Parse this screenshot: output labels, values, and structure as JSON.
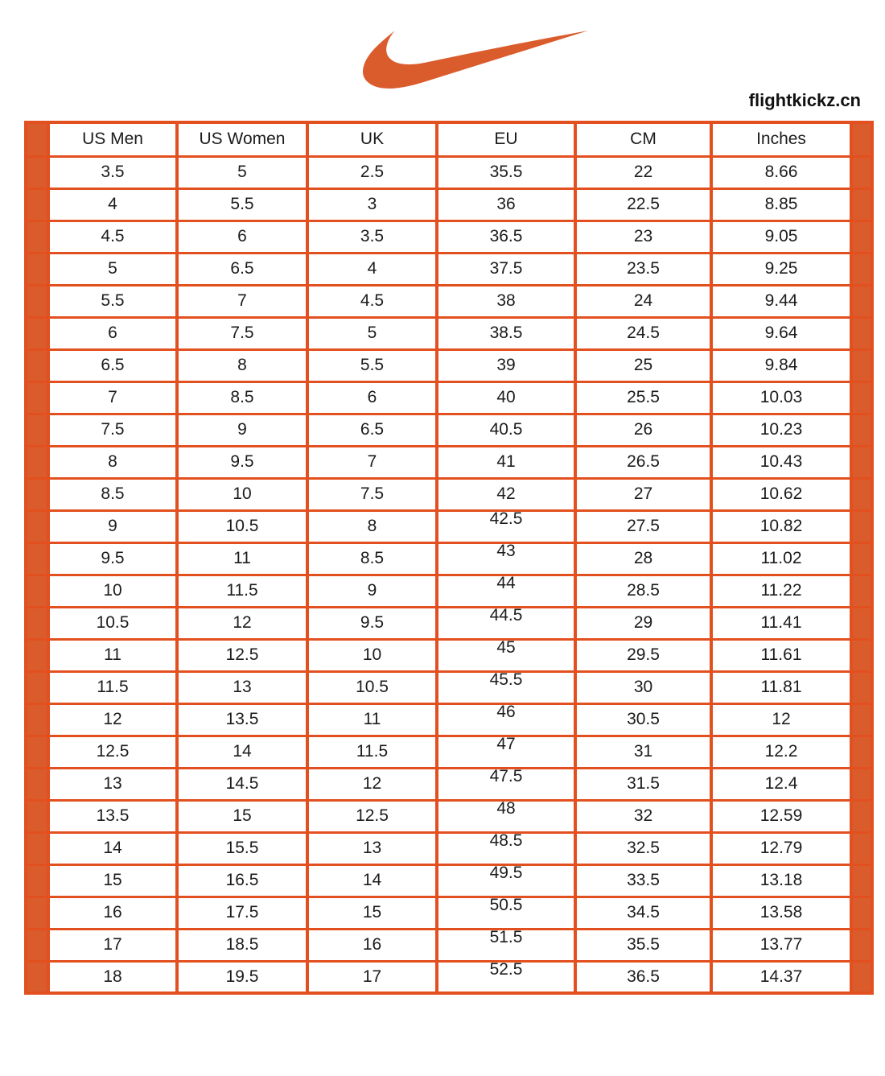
{
  "colors": {
    "accent": "#DA5C2D",
    "line": "#E3501F",
    "text": "#1C1C1C",
    "watermark_text_color": "#111111"
  },
  "logo": {
    "name": "nike-swoosh",
    "color": "#DA5C2D"
  },
  "watermark": "flightkickz.cn",
  "table": {
    "headers": [
      "US Men",
      "US Women",
      "UK",
      "EU",
      "CM",
      "Inches"
    ],
    "eu_raised_from_row": 11,
    "rows": [
      [
        "3.5",
        "5",
        "2.5",
        "35.5",
        "22",
        "8.66"
      ],
      [
        "4",
        "5.5",
        "3",
        "36",
        "22.5",
        "8.85"
      ],
      [
        "4.5",
        "6",
        "3.5",
        "36.5",
        "23",
        "9.05"
      ],
      [
        "5",
        "6.5",
        "4",
        "37.5",
        "23.5",
        "9.25"
      ],
      [
        "5.5",
        "7",
        "4.5",
        "38",
        "24",
        "9.44"
      ],
      [
        "6",
        "7.5",
        "5",
        "38.5",
        "24.5",
        "9.64"
      ],
      [
        "6.5",
        "8",
        "5.5",
        "39",
        "25",
        "9.84"
      ],
      [
        "7",
        "8.5",
        "6",
        "40",
        "25.5",
        "10.03"
      ],
      [
        "7.5",
        "9",
        "6.5",
        "40.5",
        "26",
        "10.23"
      ],
      [
        "8",
        "9.5",
        "7",
        "41",
        "26.5",
        "10.43"
      ],
      [
        "8.5",
        "10",
        "7.5",
        "42",
        "27",
        "10.62"
      ],
      [
        "9",
        "10.5",
        "8",
        "42.5",
        "27.5",
        "10.82"
      ],
      [
        "9.5",
        "11",
        "8.5",
        "43",
        "28",
        "11.02"
      ],
      [
        "10",
        "11.5",
        "9",
        "44",
        "28.5",
        "11.22"
      ],
      [
        "10.5",
        "12",
        "9.5",
        "44.5",
        "29",
        "11.41"
      ],
      [
        "11",
        "12.5",
        "10",
        "45",
        "29.5",
        "11.61"
      ],
      [
        "11.5",
        "13",
        "10.5",
        "45.5",
        "30",
        "11.81"
      ],
      [
        "12",
        "13.5",
        "11",
        "46",
        "30.5",
        "12"
      ],
      [
        "12.5",
        "14",
        "11.5",
        "47",
        "31",
        "12.2"
      ],
      [
        "13",
        "14.5",
        "12",
        "47.5",
        "31.5",
        "12.4"
      ],
      [
        "13.5",
        "15",
        "12.5",
        "48",
        "32",
        "12.59"
      ],
      [
        "14",
        "15.5",
        "13",
        "48.5",
        "32.5",
        "12.79"
      ],
      [
        "15",
        "16.5",
        "14",
        "49.5",
        "33.5",
        "13.18"
      ],
      [
        "16",
        "17.5",
        "15",
        "50.5",
        "34.5",
        "13.58"
      ],
      [
        "17",
        "18.5",
        "16",
        "51.5",
        "35.5",
        "13.77"
      ],
      [
        "18",
        "19.5",
        "17",
        "52.5",
        "36.5",
        "14.37"
      ]
    ]
  }
}
